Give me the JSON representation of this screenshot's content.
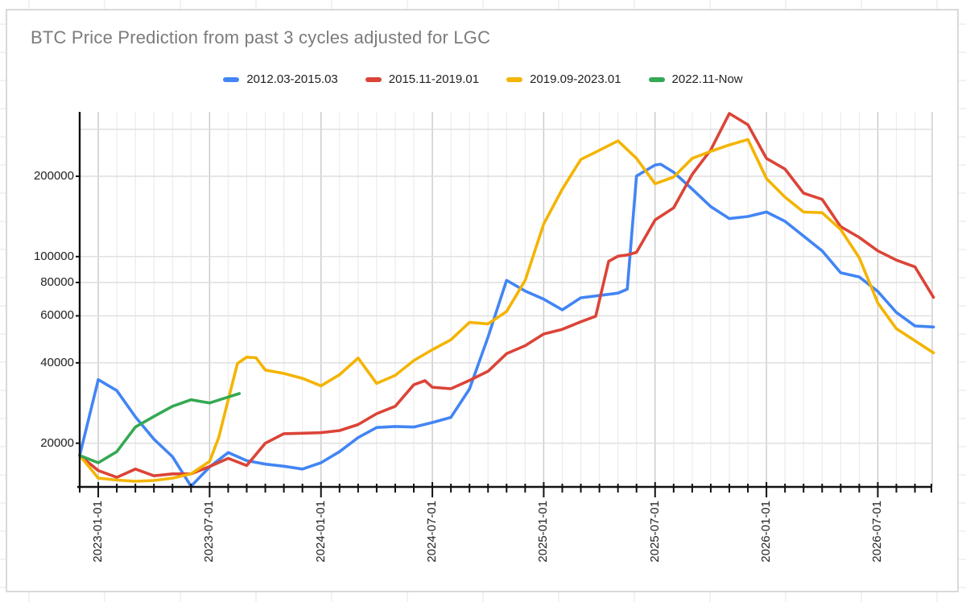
{
  "header": {
    "title": "BTC Price Prediction from past 3 cycles adjusted for LGC"
  },
  "legend": [
    {
      "label": "2012.03-2015.03",
      "color": "#4285F4"
    },
    {
      "label": "2015.11-2019.01",
      "color": "#DB4437"
    },
    {
      "label": "2019.09-2023.01",
      "color": "#F4B400"
    },
    {
      "label": "2022.11-Now",
      "color": "#34A853"
    }
  ],
  "chart_data": {
    "type": "line",
    "title": "BTC Price Prediction from past 3 cycles adjusted for LGC",
    "x_axis": {
      "unit": "months since 2022-12-01",
      "tick_labels": [
        "2023-01-01",
        "2023-07-01",
        "2024-01-01",
        "2024-07-01",
        "2025-01-01",
        "2025-07-01",
        "2026-01-01",
        "2026-07-01"
      ],
      "tick_months": [
        1,
        7,
        13,
        19,
        25,
        31,
        37,
        43
      ],
      "minor_ticks": "monthly",
      "range_months": [
        0,
        46
      ]
    },
    "y_axis": {
      "scale": "log",
      "tick_values": [
        20000,
        40000,
        60000,
        80000,
        100000,
        200000
      ],
      "gridline_values": [
        20000,
        40000,
        60000,
        80000,
        100000,
        200000,
        300000
      ],
      "range": [
        12500,
        350000
      ]
    },
    "series": [
      {
        "name": "2012.03-2015.03",
        "color": "#4285F4",
        "points": [
          [
            0,
            18000
          ],
          [
            1,
            34600
          ],
          [
            2,
            31500
          ],
          [
            3,
            25100
          ],
          [
            4,
            20700
          ],
          [
            5,
            17800
          ],
          [
            6,
            13800
          ],
          [
            7,
            16300
          ],
          [
            8,
            18450
          ],
          [
            9,
            17200
          ],
          [
            10,
            16700
          ],
          [
            11,
            16400
          ],
          [
            12,
            16000
          ],
          [
            13,
            16900
          ],
          [
            14,
            18600
          ],
          [
            15,
            21000
          ],
          [
            16,
            22900
          ],
          [
            17,
            23100
          ],
          [
            18,
            23000
          ],
          [
            19,
            23900
          ],
          [
            20,
            25000
          ],
          [
            21,
            31900
          ],
          [
            22,
            50000
          ],
          [
            23,
            81500
          ],
          [
            24,
            74300
          ],
          [
            25,
            69300
          ],
          [
            26,
            63200
          ],
          [
            27,
            70100
          ],
          [
            28,
            71500
          ],
          [
            29,
            73000
          ],
          [
            29.5,
            75500
          ],
          [
            30,
            200400
          ],
          [
            31,
            220400
          ],
          [
            31.3,
            222000
          ],
          [
            32,
            207000
          ],
          [
            33,
            179000
          ],
          [
            34,
            154000
          ],
          [
            35,
            138800
          ],
          [
            36,
            141300
          ],
          [
            37,
            147000
          ],
          [
            38,
            135600
          ],
          [
            39,
            119400
          ],
          [
            40,
            105100
          ],
          [
            41,
            87000
          ],
          [
            42,
            83900
          ],
          [
            43,
            74000
          ],
          [
            44,
            61800
          ],
          [
            45,
            55000
          ],
          [
            46,
            54500
          ]
        ]
      },
      {
        "name": "2015.11-2019.01",
        "color": "#DB4437",
        "points": [
          [
            0,
            18000
          ],
          [
            1,
            15800
          ],
          [
            2,
            14900
          ],
          [
            3,
            16000
          ],
          [
            4,
            15100
          ],
          [
            5,
            15350
          ],
          [
            6,
            15350
          ],
          [
            7,
            16350
          ],
          [
            8,
            17550
          ],
          [
            9,
            16500
          ],
          [
            10,
            20000
          ],
          [
            11,
            21700
          ],
          [
            12,
            21800
          ],
          [
            13,
            21900
          ],
          [
            14,
            22300
          ],
          [
            15,
            23500
          ],
          [
            16,
            25800
          ],
          [
            17,
            27500
          ],
          [
            18,
            33100
          ],
          [
            18.6,
            34300
          ],
          [
            19,
            32400
          ],
          [
            20,
            32000
          ],
          [
            21,
            34400
          ],
          [
            22,
            37200
          ],
          [
            23,
            43300
          ],
          [
            24,
            46400
          ],
          [
            25,
            51300
          ],
          [
            26,
            53400
          ],
          [
            27,
            57000
          ],
          [
            27.8,
            59800
          ],
          [
            28.5,
            96000
          ],
          [
            29,
            100400
          ],
          [
            29.5,
            101400
          ],
          [
            30,
            103800
          ],
          [
            31,
            137200
          ],
          [
            32,
            152200
          ],
          [
            33,
            203300
          ],
          [
            34,
            251000
          ],
          [
            35,
            343800
          ],
          [
            36,
            311900
          ],
          [
            37,
            233400
          ],
          [
            38,
            212800
          ],
          [
            39,
            172900
          ],
          [
            40,
            163900
          ],
          [
            41,
            129500
          ],
          [
            42,
            118000
          ],
          [
            43,
            105100
          ],
          [
            44,
            97000
          ],
          [
            45,
            91500
          ],
          [
            46,
            70400
          ]
        ]
      },
      {
        "name": "2019.09-2023.01",
        "color": "#F4B400",
        "points": [
          [
            0,
            18000
          ],
          [
            1,
            14800
          ],
          [
            2,
            14550
          ],
          [
            3,
            14400
          ],
          [
            4,
            14500
          ],
          [
            5,
            14800
          ],
          [
            6,
            15350
          ],
          [
            7,
            17100
          ],
          [
            7.5,
            21100
          ],
          [
            8,
            29100
          ],
          [
            8.5,
            39800
          ],
          [
            9,
            42000
          ],
          [
            9.5,
            41800
          ],
          [
            10,
            37600
          ],
          [
            11,
            36500
          ],
          [
            12,
            35000
          ],
          [
            13,
            32800
          ],
          [
            14,
            36100
          ],
          [
            15,
            41700
          ],
          [
            16,
            33500
          ],
          [
            17,
            35900
          ],
          [
            18,
            40800
          ],
          [
            19,
            44800
          ],
          [
            20,
            48800
          ],
          [
            21,
            56700
          ],
          [
            22,
            56000
          ],
          [
            23,
            62300
          ],
          [
            24,
            81500
          ],
          [
            25,
            132500
          ],
          [
            26,
            179000
          ],
          [
            27,
            231000
          ],
          [
            28,
            250200
          ],
          [
            29,
            271500
          ],
          [
            30,
            233400
          ],
          [
            31,
            187500
          ],
          [
            32,
            198600
          ],
          [
            33,
            233400
          ],
          [
            34,
            248000
          ],
          [
            35,
            262000
          ],
          [
            36,
            274700
          ],
          [
            37,
            196200
          ],
          [
            38,
            167000
          ],
          [
            39,
            147000
          ],
          [
            40,
            146000
          ],
          [
            41,
            126400
          ],
          [
            42,
            99000
          ],
          [
            43,
            67000
          ],
          [
            44,
            53700
          ],
          [
            45,
            48400
          ],
          [
            46,
            43600
          ]
        ]
      },
      {
        "name": "2022.11-Now",
        "color": "#34A853",
        "points": [
          [
            0,
            18000
          ],
          [
            1,
            16900
          ],
          [
            2,
            18600
          ],
          [
            3,
            23000
          ],
          [
            4,
            25200
          ],
          [
            5,
            27500
          ],
          [
            6,
            29100
          ],
          [
            7,
            28300
          ],
          [
            8,
            29800
          ],
          [
            8.6,
            30700
          ]
        ]
      }
    ]
  }
}
